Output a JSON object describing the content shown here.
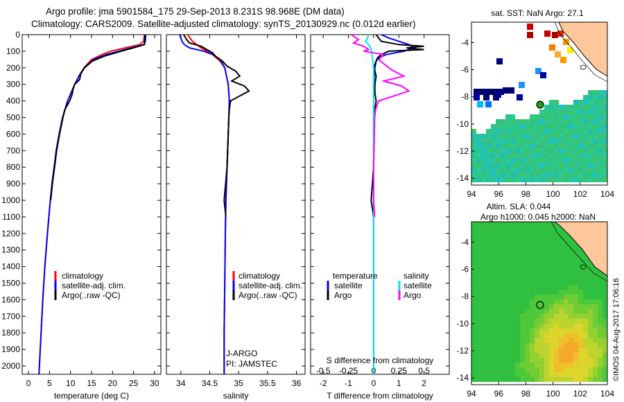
{
  "header": {
    "line1": "Argo profile: jma 5901584_175 29-Sep-2013 8.231S 98.968E (DM data)",
    "line2": "Climatology: CARS2009. Satellite-adjusted climatology: synTS_20130929.nc (0.012d earlier)"
  },
  "colors": {
    "climatology": "#ff0000",
    "satellite": "#0000ff",
    "argo": "#000000",
    "salinity_satellite": "#00e5e5",
    "salinity_argo": "#ff00ff",
    "land": "#ffc89c"
  },
  "chart_data": [
    {
      "type": "line",
      "name": "temperature",
      "xlabel": "temperature (deg C)",
      "ylabel": "",
      "xlim": [
        -1.5,
        31.5
      ],
      "ylim": [
        2050,
        0
      ],
      "xticks": [
        "0",
        "5",
        "10",
        "15",
        "20",
        "25",
        "30"
      ],
      "yticks": [
        "0",
        "100",
        "200",
        "300",
        "400",
        "500",
        "600",
        "700",
        "800",
        "900",
        "1000",
        "1100",
        "1200",
        "1300",
        "1400",
        "1500",
        "1600",
        "1700",
        "1800",
        "1900",
        "2000"
      ],
      "legend": [
        "climatology",
        "satellite-adj. clim.",
        "Argo(..raw -QC)"
      ],
      "series": [
        {
          "name": "climatology",
          "depth": [
            0,
            40,
            60,
            80,
            100,
            120,
            150,
            200,
            250,
            300,
            400,
            500,
            600,
            700,
            800,
            900,
            1000,
            1200,
            1400,
            1600,
            1800,
            2000,
            2050
          ],
          "values": [
            27.6,
            27.4,
            26.5,
            23.0,
            19.5,
            17.5,
            15.0,
            13.2,
            12.0,
            11.0,
            9.3,
            8.1,
            7.3,
            6.6,
            6.1,
            5.6,
            5.2,
            4.5,
            3.9,
            3.4,
            3.0,
            2.6,
            2.5
          ]
        },
        {
          "name": "satellite",
          "depth": [
            0,
            40,
            60,
            80,
            100,
            120,
            150,
            200,
            250,
            300,
            400,
            500,
            600,
            700,
            800,
            900,
            1000,
            1200,
            1400,
            1600,
            1800,
            2000,
            2050
          ],
          "values": [
            27.9,
            27.8,
            27.5,
            24.5,
            21.5,
            18.5,
            15.5,
            13.3,
            12.0,
            11.0,
            9.3,
            8.1,
            7.3,
            6.6,
            6.1,
            5.6,
            5.2,
            4.5,
            3.9,
            3.4,
            3.0,
            2.6,
            2.5
          ]
        },
        {
          "name": "argo",
          "depth": [
            0,
            60,
            80,
            100,
            130,
            160,
            200,
            240,
            270,
            300,
            330,
            360,
            400,
            450,
            500,
            600,
            700,
            800,
            900,
            1000
          ],
          "values": [
            27.7,
            27.6,
            25.0,
            22.0,
            18.0,
            15.2,
            13.3,
            12.4,
            12.2,
            11.0,
            10.6,
            10.4,
            9.8,
            8.7,
            8.2,
            7.4,
            6.7,
            6.2,
            5.7,
            5.3
          ]
        }
      ]
    },
    {
      "type": "line",
      "name": "salinity",
      "xlabel": "salinity",
      "xlim": [
        33.75,
        36.15
      ],
      "ylim": [
        2050,
        0
      ],
      "xticks": [
        "34",
        "34.5",
        "35",
        "35.5",
        "36"
      ],
      "legend": [
        "climatology",
        "satellite-adj. clim.",
        "Argo(..raw -QC)"
      ],
      "annotations": [
        "J-ARGO",
        "PI: JAMSTEC"
      ],
      "series": [
        {
          "name": "climatology",
          "depth": [
            0,
            40,
            80,
            120,
            160,
            200,
            300,
            400,
            600,
            800,
            1000,
            1200,
            1500,
            1800,
            2050
          ],
          "values": [
            34.12,
            34.2,
            34.35,
            34.55,
            34.68,
            34.76,
            34.82,
            34.84,
            34.82,
            34.8,
            34.78,
            34.77,
            34.76,
            34.75,
            34.75
          ]
        },
        {
          "name": "satellite",
          "depth": [
            0,
            20,
            40,
            60,
            80,
            100,
            120,
            150,
            200,
            300,
            400,
            600,
            800,
            1000,
            1200,
            1500,
            1800,
            2050
          ],
          "values": [
            33.98,
            34.0,
            34.02,
            34.06,
            34.15,
            34.4,
            34.55,
            34.68,
            34.76,
            34.82,
            34.84,
            34.82,
            34.8,
            34.78,
            34.77,
            34.76,
            34.75,
            34.75
          ]
        },
        {
          "name": "argo",
          "depth": [
            0,
            30,
            50,
            70,
            90,
            110,
            130,
            160,
            190,
            220,
            250,
            280,
            310,
            340,
            370,
            400,
            450,
            500,
            600,
            800,
            1000,
            1100
          ],
          "values": [
            34.05,
            34.1,
            34.15,
            34.35,
            34.45,
            34.55,
            34.6,
            34.72,
            34.8,
            34.95,
            35.02,
            34.88,
            35.1,
            35.18,
            35.02,
            34.86,
            34.84,
            34.83,
            34.82,
            34.8,
            34.75,
            34.78
          ]
        }
      ]
    },
    {
      "type": "line",
      "name": "difference",
      "xlabel": "T difference from climatology",
      "xlabel_top": "S difference from climatology",
      "xlim": [
        -2.5,
        3.0
      ],
      "ylim": [
        2050,
        0
      ],
      "xticks": [
        "-2",
        "-1",
        "0",
        "1",
        "2"
      ],
      "xticks_top": [
        "-0.5",
        "-0.25",
        "0",
        "0.25",
        "0.5"
      ],
      "legend_temperature": {
        "title": "temperature",
        "items": [
          "satellite",
          "Argo"
        ]
      },
      "legend_salinity": {
        "title": "salinity",
        "items": [
          "satellite",
          "Argo"
        ]
      },
      "series": [
        {
          "name": "T satellite",
          "depth": [
            0,
            20,
            40,
            60,
            80,
            100,
            120,
            140,
            160,
            200,
            300,
            500,
            1000,
            2000
          ],
          "values": [
            0.3,
            0.6,
            1.0,
            1.4,
            1.6,
            1.2,
            0.5,
            0.2,
            0.1,
            0.05,
            0,
            0,
            0,
            0
          ]
        },
        {
          "name": "T argo",
          "depth": [
            0,
            40,
            60,
            70,
            80,
            90,
            100,
            120,
            140,
            160,
            180,
            200,
            250,
            300,
            350,
            400,
            450,
            500,
            800,
            1000,
            1100
          ],
          "values": [
            0.1,
            0.3,
            1.0,
            2.0,
            1.3,
            2.0,
            0.6,
            0.3,
            0.15,
            0.1,
            0.05,
            0.02,
            0.1,
            0.05,
            0.05,
            0.1,
            0.05,
            0.02,
            0,
            -0.1,
            0
          ]
        },
        {
          "name": "S satellite",
          "depth": [
            0,
            20,
            40,
            60,
            80,
            100,
            150,
            200,
            400,
            1000,
            2050
          ],
          "values": [
            -0.05,
            -0.06,
            -0.08,
            -0.05,
            -0.03,
            -0.02,
            -0.01,
            0,
            0,
            0,
            0
          ]
        },
        {
          "name": "S argo",
          "depth": [
            0,
            30,
            50,
            70,
            90,
            100,
            120,
            150,
            200,
            220,
            250,
            280,
            310,
            340,
            370,
            400,
            450,
            500,
            800,
            1000,
            1100
          ],
          "values": [
            -0.22,
            -0.15,
            -0.2,
            -0.1,
            -0.05,
            -0.1,
            0.1,
            0.05,
            0.15,
            0.2,
            0.3,
            0.1,
            0.28,
            0.35,
            0.2,
            0.05,
            0.02,
            0.01,
            0,
            0,
            0.01
          ]
        }
      ]
    },
    {
      "type": "heatmap",
      "name": "sst_map",
      "title": "sat. SST: NaN Argo: 27.1",
      "xlim": [
        94,
        104
      ],
      "ylim": [
        -14.5,
        -2.5
      ],
      "xticks": [
        "94",
        "96",
        "98",
        "100",
        "102",
        "104"
      ],
      "yticks": [
        "-4",
        "-6",
        "-8",
        "-10",
        "-12",
        "-14"
      ],
      "profile_location": {
        "lon": 98.968,
        "lat": -8.231
      }
    },
    {
      "type": "heatmap",
      "name": "sla_map",
      "title": "Altim. SLA: 0.044",
      "subtitle": "Argo h1000: 0.045 h2000: NaN",
      "xlim": [
        94,
        104
      ],
      "ylim": [
        -14.5,
        -2.5
      ],
      "xticks": [
        "94",
        "96",
        "98",
        "100",
        "102",
        "104"
      ],
      "yticks": [
        "-4",
        "-6",
        "-8",
        "-10",
        "-12",
        "-14"
      ],
      "profile_location": {
        "lon": 98.968,
        "lat": -8.231
      }
    }
  ],
  "footer": {
    "credit": "©IMOS 04-Aug-2017 17:06:16"
  }
}
